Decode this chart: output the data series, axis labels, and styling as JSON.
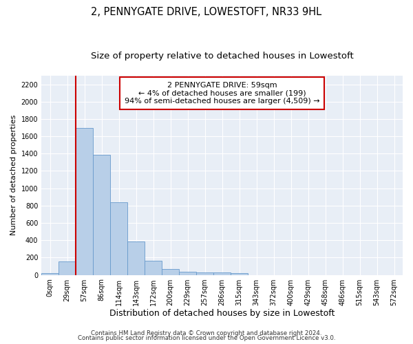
{
  "title": "2, PENNYGATE DRIVE, LOWESTOFT, NR33 9HL",
  "subtitle": "Size of property relative to detached houses in Lowestoft",
  "xlabel": "Distribution of detached houses by size in Lowestoft",
  "ylabel": "Number of detached properties",
  "bin_labels": [
    "0sqm",
    "29sqm",
    "57sqm",
    "86sqm",
    "114sqm",
    "143sqm",
    "172sqm",
    "200sqm",
    "229sqm",
    "257sqm",
    "286sqm",
    "315sqm",
    "343sqm",
    "372sqm",
    "400sqm",
    "429sqm",
    "458sqm",
    "486sqm",
    "515sqm",
    "543sqm",
    "572sqm"
  ],
  "bar_values": [
    20,
    155,
    1700,
    1390,
    835,
    385,
    165,
    65,
    38,
    30,
    30,
    20,
    0,
    0,
    0,
    0,
    0,
    0,
    0,
    0,
    0
  ],
  "bar_color": "#b8cfe8",
  "bar_edge_color": "#6699cc",
  "vline_x": 2,
  "annotation_line1": "2 PENNYGATE DRIVE: 59sqm",
  "annotation_line2": "← 4% of detached houses are smaller (199)",
  "annotation_line3": "94% of semi-detached houses are larger (4,509) →",
  "annotation_box_color": "#ffffff",
  "annotation_box_edge": "#cc0000",
  "vline_color": "#cc0000",
  "ylim": [
    0,
    2300
  ],
  "yticks": [
    0,
    200,
    400,
    600,
    800,
    1000,
    1200,
    1400,
    1600,
    1800,
    2000,
    2200
  ],
  "footer1": "Contains HM Land Registry data © Crown copyright and database right 2024.",
  "footer2": "Contains public sector information licensed under the Open Government Licence v3.0.",
  "plot_bg_color": "#e8eef6",
  "grid_color": "#ffffff",
  "title_fontsize": 10.5,
  "subtitle_fontsize": 9.5,
  "tick_fontsize": 7,
  "ylabel_fontsize": 8,
  "xlabel_fontsize": 9,
  "footer_fontsize": 6.2
}
